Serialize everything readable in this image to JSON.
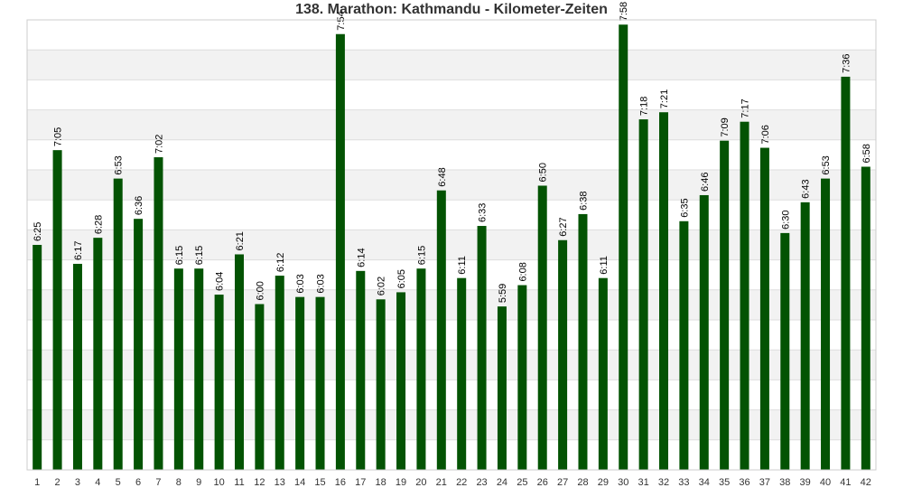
{
  "chart_data": {
    "type": "bar",
    "title": "138. Marathon: Kathmandu - Kilometer-Zeiten",
    "xlabel": "",
    "ylabel": "",
    "categories": [
      "1",
      "2",
      "3",
      "4",
      "5",
      "6",
      "7",
      "8",
      "9",
      "10",
      "11",
      "12",
      "13",
      "14",
      "15",
      "16",
      "17",
      "18",
      "19",
      "20",
      "21",
      "22",
      "23",
      "24",
      "25",
      "26",
      "27",
      "28",
      "29",
      "30",
      "31",
      "32",
      "33",
      "34",
      "35",
      "36",
      "37",
      "38",
      "39",
      "40",
      "41",
      "42"
    ],
    "labels": [
      "6:25",
      "7:05",
      "6:17",
      "6:28",
      "6:53",
      "6:36",
      "7:02",
      "6:15",
      "6:15",
      "6:04",
      "6:21",
      "6:00",
      "6:12",
      "6:03",
      "6:03",
      "7:54",
      "6:14",
      "6:02",
      "6:05",
      "6:15",
      "6:48",
      "6:11",
      "6:33",
      "5:59",
      "6:08",
      "6:50",
      "6:27",
      "6:38",
      "6:11",
      "7:58",
      "7:18",
      "7:21",
      "6:35",
      "6:46",
      "7:09",
      "7:17",
      "7:06",
      "6:30",
      "6:43",
      "6:53",
      "7:36",
      "6:58"
    ],
    "values_seconds": [
      385,
      425,
      377,
      388,
      413,
      396,
      422,
      375,
      375,
      364,
      381,
      360,
      372,
      363,
      363,
      474,
      374,
      362,
      365,
      375,
      408,
      371,
      393,
      359,
      368,
      410,
      387,
      398,
      371,
      478,
      438,
      441,
      395,
      406,
      429,
      437,
      426,
      390,
      403,
      413,
      456,
      418
    ],
    "ylim_seconds": [
      290,
      480
    ],
    "grid": true,
    "colors": {
      "bar": "#035303",
      "band": "#f2f2f2",
      "grid": "#dddddd"
    }
  }
}
